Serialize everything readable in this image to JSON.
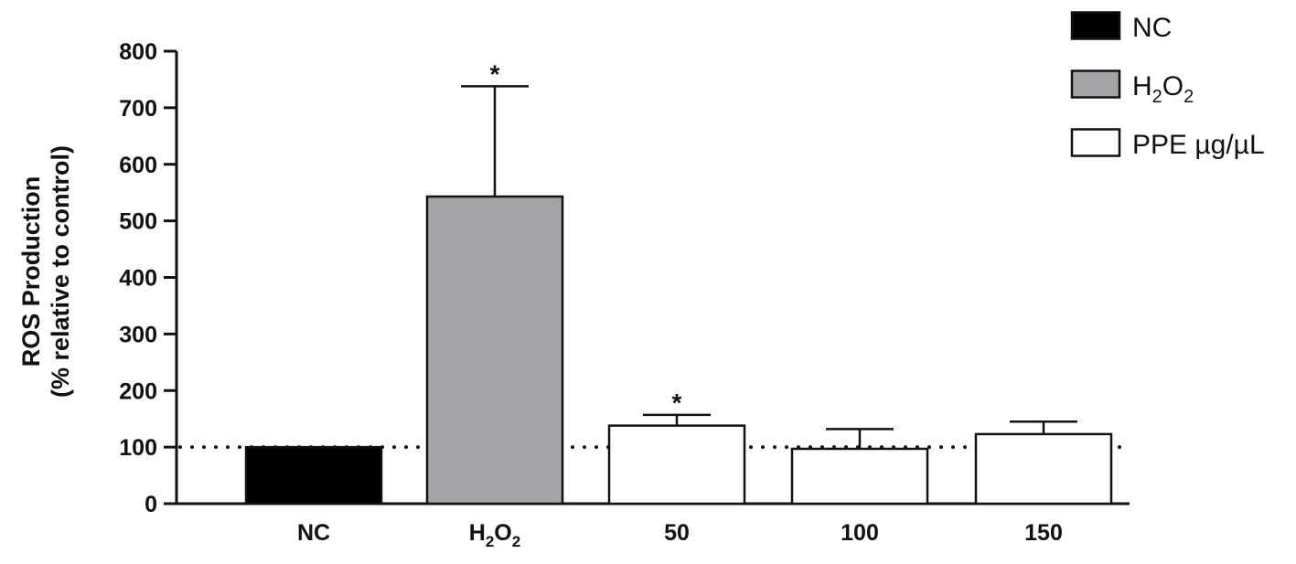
{
  "chart_data": {
    "type": "bar",
    "categories": [
      "NC",
      "H2O2",
      "50",
      "100",
      "150"
    ],
    "category_labels": [
      {
        "text": "NC",
        "sub": ""
      },
      {
        "text": "H",
        "sub": "2",
        "text2": "O",
        "sub2": "2"
      },
      {
        "text": "50",
        "sub": ""
      },
      {
        "text": "100",
        "sub": ""
      },
      {
        "text": "150",
        "sub": ""
      }
    ],
    "values": [
      100,
      543,
      138,
      97,
      123
    ],
    "errors": [
      0,
      195,
      19,
      35,
      22
    ],
    "significance": [
      "",
      "*",
      "*",
      "",
      ""
    ],
    "bar_colors": [
      "#000000",
      "#a4a3a8",
      "#ffffff",
      "#ffffff",
      "#ffffff"
    ],
    "ylabel_line1": "ROS Production",
    "ylabel_line2": "(% relative to control)",
    "xlabel": "",
    "ylim": [
      0,
      800
    ],
    "yticks": [
      0,
      100,
      200,
      300,
      400,
      500,
      600,
      700,
      800
    ],
    "reference_line": 100,
    "legend": [
      {
        "label": "NC",
        "color": "#000000"
      },
      {
        "label": "H",
        "sub": "2",
        "label2": "O",
        "sub2": "2",
        "color": "#a4a3a8"
      },
      {
        "label": "PPE µg/µL",
        "color": "#ffffff"
      }
    ],
    "legend_position": "top-right",
    "grid": false
  }
}
